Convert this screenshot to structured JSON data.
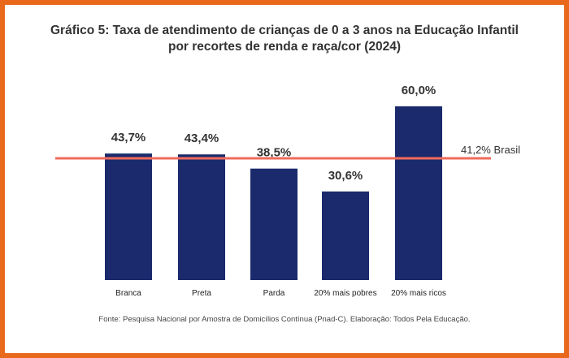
{
  "chart_data": {
    "type": "bar",
    "title_line1": "Gráfico 5: Taxa de atendimento de crianças de 0 a 3 anos na Educação Infantil",
    "title_line2": "por recortes de renda e raça/cor (2024)",
    "categories": [
      "Branca",
      "Preta",
      "Parda",
      "20% mais pobres",
      "20% mais ricos"
    ],
    "values": [
      43.7,
      43.4,
      38.5,
      30.6,
      60.0
    ],
    "value_labels": [
      "43,7%",
      "43,4%",
      "38,5%",
      "30,6%",
      "60,0%"
    ],
    "ylim": [
      0,
      60
    ],
    "reference_line": {
      "value": 41.2,
      "label": "41,2% Brasil",
      "color": "#f26b5b"
    },
    "bar_color": "#1a2a6c",
    "grid": false,
    "source": "Fonte: Pesquisa Nacional por Amostra de Domicílios Contínua (Pnad-C). Elaboração: Todos Pela Educação."
  },
  "colors": {
    "frame": "#e8691b",
    "text": "#333333"
  }
}
